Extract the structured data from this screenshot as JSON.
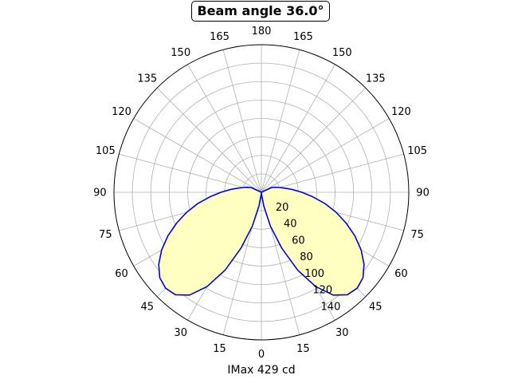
{
  "chart_data": {
    "type": "polar",
    "title": "Beam angle 36.0°",
    "xlabel": "IMax 429 cd",
    "angle_tick_labels": [
      "0",
      "15",
      "30",
      "45",
      "60",
      "75",
      "90",
      "105",
      "120",
      "135",
      "150",
      "165",
      "180",
      "165",
      "150",
      "135",
      "120",
      "105",
      "90",
      "75",
      "60",
      "45",
      "30",
      "15"
    ],
    "radial_tick_labels": [
      "20",
      "40",
      "60",
      "80",
      "100",
      "120",
      "140"
    ],
    "radial_ticks": [
      20,
      40,
      60,
      80,
      100,
      120,
      140
    ],
    "rlim": [
      0,
      160
    ],
    "grid": true,
    "zero_location": "bottom",
    "series": [
      {
        "angles_deg": [
          0,
          5,
          10,
          15,
          20,
          25,
          30,
          35,
          40,
          45,
          50,
          55,
          60,
          65,
          70,
          75,
          80,
          85,
          90,
          95,
          100,
          105,
          110,
          115,
          120
        ],
        "values": [
          0,
          2,
          15,
          38,
          64,
          93,
          118,
          136,
          145,
          147,
          144,
          136,
          125,
          112,
          98,
          84,
          70,
          56,
          44,
          34,
          26,
          20,
          16,
          12,
          0
        ],
        "symmetric": true,
        "line_color": "#0000dd",
        "fill_color": "#ffffc0"
      }
    ]
  }
}
